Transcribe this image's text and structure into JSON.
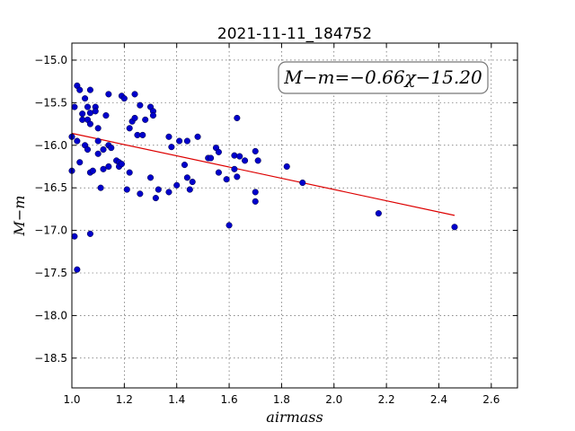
{
  "chart_data": {
    "type": "scatter",
    "title": "2021-11-11_184752",
    "xlabel": "airmass",
    "ylabel": "M−m",
    "xlim": [
      1.0,
      2.7
    ],
    "ylim": [
      -18.85,
      -14.8
    ],
    "xticks": [
      1.0,
      1.2,
      1.4,
      1.6,
      1.8,
      2.0,
      2.2,
      2.4,
      2.6
    ],
    "xtick_labels": [
      "1.0",
      "1.2",
      "1.4",
      "1.6",
      "1.8",
      "2.0",
      "2.2",
      "2.4",
      "2.6"
    ],
    "yticks": [
      -15.0,
      -15.5,
      -16.0,
      -16.5,
      -17.0,
      -17.5,
      -18.0,
      -18.5
    ],
    "ytick_labels": [
      "−15.0",
      "−15.5",
      "−16.0",
      "−16.5",
      "−17.0",
      "−17.5",
      "−18.0",
      "−18.5"
    ],
    "grid": true,
    "annotation": "M−m=−0.66χ−15.20",
    "annotation_position": "top-right",
    "points_color": "#0000cc",
    "fit_color": "#dd0000",
    "fit": {
      "slope": -0.66,
      "intercept": -15.2,
      "x_range": [
        1.0,
        2.46
      ]
    },
    "points": [
      [
        1.0,
        -15.9
      ],
      [
        1.0,
        -16.3
      ],
      [
        1.01,
        -15.55
      ],
      [
        1.01,
        -17.07
      ],
      [
        1.02,
        -15.3
      ],
      [
        1.02,
        -15.95
      ],
      [
        1.02,
        -17.46
      ],
      [
        1.03,
        -15.35
      ],
      [
        1.03,
        -16.2
      ],
      [
        1.04,
        -15.63
      ],
      [
        1.04,
        -15.7
      ],
      [
        1.05,
        -15.45
      ],
      [
        1.05,
        -16.0
      ],
      [
        1.06,
        -15.55
      ],
      [
        1.06,
        -15.7
      ],
      [
        1.06,
        -16.05
      ],
      [
        1.07,
        -15.35
      ],
      [
        1.07,
        -15.62
      ],
      [
        1.07,
        -15.75
      ],
      [
        1.07,
        -16.32
      ],
      [
        1.07,
        -17.04
      ],
      [
        1.08,
        -16.3
      ],
      [
        1.09,
        -15.55
      ],
      [
        1.09,
        -15.6
      ],
      [
        1.1,
        -15.8
      ],
      [
        1.1,
        -15.95
      ],
      [
        1.1,
        -16.1
      ],
      [
        1.11,
        -16.5
      ],
      [
        1.12,
        -16.28
      ],
      [
        1.12,
        -16.05
      ],
      [
        1.13,
        -15.65
      ],
      [
        1.14,
        -15.4
      ],
      [
        1.14,
        -16.0
      ],
      [
        1.14,
        -16.25
      ],
      [
        1.15,
        -16.03
      ],
      [
        1.17,
        -16.18
      ],
      [
        1.18,
        -16.2
      ],
      [
        1.18,
        -16.25
      ],
      [
        1.19,
        -15.42
      ],
      [
        1.19,
        -16.22
      ],
      [
        1.2,
        -15.45
      ],
      [
        1.21,
        -16.52
      ],
      [
        1.22,
        -15.8
      ],
      [
        1.22,
        -16.32
      ],
      [
        1.23,
        -15.72
      ],
      [
        1.24,
        -15.4
      ],
      [
        1.24,
        -15.68
      ],
      [
        1.25,
        -15.88
      ],
      [
        1.26,
        -15.53
      ],
      [
        1.26,
        -16.57
      ],
      [
        1.27,
        -15.88
      ],
      [
        1.28,
        -15.7
      ],
      [
        1.3,
        -15.55
      ],
      [
        1.3,
        -16.38
      ],
      [
        1.31,
        -15.6
      ],
      [
        1.31,
        -15.65
      ],
      [
        1.32,
        -16.62
      ],
      [
        1.33,
        -16.52
      ],
      [
        1.37,
        -15.9
      ],
      [
        1.37,
        -16.55
      ],
      [
        1.38,
        -16.02
      ],
      [
        1.4,
        -16.47
      ],
      [
        1.41,
        -15.95
      ],
      [
        1.43,
        -16.23
      ],
      [
        1.44,
        -16.38
      ],
      [
        1.44,
        -15.95
      ],
      [
        1.45,
        -16.52
      ],
      [
        1.46,
        -16.43
      ],
      [
        1.48,
        -15.9
      ],
      [
        1.52,
        -16.15
      ],
      [
        1.53,
        -16.15
      ],
      [
        1.55,
        -16.03
      ],
      [
        1.56,
        -16.08
      ],
      [
        1.56,
        -16.32
      ],
      [
        1.59,
        -16.4
      ],
      [
        1.6,
        -16.94
      ],
      [
        1.62,
        -16.12
      ],
      [
        1.62,
        -16.28
      ],
      [
        1.63,
        -15.68
      ],
      [
        1.63,
        -16.37
      ],
      [
        1.64,
        -16.13
      ],
      [
        1.66,
        -16.18
      ],
      [
        1.7,
        -16.07
      ],
      [
        1.7,
        -16.55
      ],
      [
        1.7,
        -16.66
      ],
      [
        1.71,
        -16.18
      ],
      [
        1.82,
        -16.25
      ],
      [
        1.88,
        -16.44
      ],
      [
        2.17,
        -16.8
      ],
      [
        2.46,
        -16.96
      ]
    ]
  }
}
